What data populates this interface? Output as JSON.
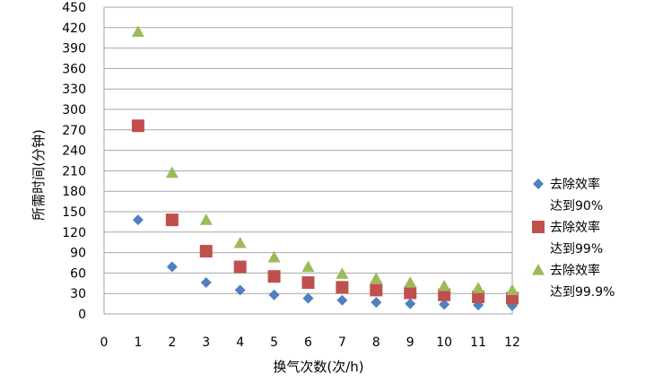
{
  "chart_data": {
    "type": "scatter",
    "xlabel": "换气次数(次/h)",
    "ylabel": "所需时间(分钟)",
    "xlim": [
      0,
      12
    ],
    "ylim": [
      0,
      450
    ],
    "xticks": [
      "0",
      "1",
      "2",
      "3",
      "4",
      "5",
      "6",
      "7",
      "8",
      "9",
      "10",
      "11",
      "12"
    ],
    "yticks": [
      "0",
      "30",
      "60",
      "90",
      "120",
      "150",
      "180",
      "210",
      "240",
      "270",
      "300",
      "330",
      "360",
      "390",
      "420",
      "450"
    ],
    "grid": "horizontal",
    "legend_position": "right",
    "series": [
      {
        "name_lines": [
          "去除效率",
          "达到90%"
        ],
        "marker": "diamond",
        "color": "#4F81BD",
        "x": [
          1,
          2,
          3,
          4,
          5,
          6,
          7,
          8,
          9,
          10,
          11,
          12
        ],
        "y": [
          138,
          69,
          46,
          35,
          28,
          23,
          20,
          17,
          15,
          14,
          13,
          12
        ]
      },
      {
        "name_lines": [
          "去除效率",
          "达到99%"
        ],
        "marker": "square",
        "color": "#C0504D",
        "x": [
          1,
          2,
          3,
          4,
          5,
          6,
          7,
          8,
          9,
          10,
          11,
          12
        ],
        "y": [
          276,
          138,
          92,
          69,
          55,
          46,
          39,
          35,
          31,
          28,
          25,
          23
        ]
      },
      {
        "name_lines": [
          "去除效率",
          "达到99.9%"
        ],
        "marker": "triangle",
        "color": "#9BBB59",
        "x": [
          1,
          2,
          3,
          4,
          5,
          6,
          7,
          8,
          9,
          10,
          11,
          12
        ],
        "y": [
          414,
          207,
          138,
          104,
          83,
          69,
          59,
          52,
          46,
          41,
          38,
          35
        ]
      }
    ]
  }
}
